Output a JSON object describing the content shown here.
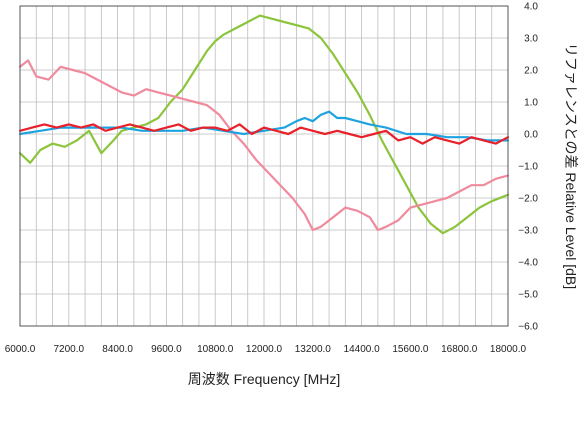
{
  "chart_data": {
    "type": "line",
    "title": "",
    "xlabel": "周波数 Frequency [MHz]",
    "ylabel": "リファレンスとの差 Relative Level [dB]",
    "xlim": [
      6000,
      18000
    ],
    "ylim": [
      -6,
      4
    ],
    "x_ticks": [
      "6000.0",
      "7200.0",
      "8400.0",
      "9600.0",
      "10800.0",
      "12000.0",
      "13200.0",
      "14400.0",
      "15600.0",
      "16800.0",
      "18000.0"
    ],
    "y_ticks": [
      "4.0",
      "3.0",
      "2.0",
      "1.0",
      "0.0",
      "−1.0",
      "−2.0",
      "−3.0",
      "−4.0",
      "−5.0",
      "−6.0"
    ],
    "grid": true,
    "series": [
      {
        "color": "#8cc43c",
        "x": [
          6000,
          6250,
          6500,
          6800,
          7100,
          7400,
          7700,
          8000,
          8300,
          8500,
          8800,
          9100,
          9400,
          9700,
          10000,
          10300,
          10600,
          10800,
          11000,
          11300,
          11600,
          11900,
          12200,
          12500,
          12800,
          13100,
          13400,
          13700,
          14000,
          14300,
          14600,
          14900,
          15200,
          15500,
          15800,
          16100,
          16400,
          16700,
          17000,
          17300,
          17600,
          18000
        ],
        "y": [
          -0.6,
          -0.9,
          -0.5,
          -0.3,
          -0.4,
          -0.2,
          0.1,
          -0.6,
          -0.2,
          0.1,
          0.2,
          0.3,
          0.5,
          1.0,
          1.4,
          2.0,
          2.6,
          2.9,
          3.1,
          3.3,
          3.5,
          3.7,
          3.6,
          3.5,
          3.4,
          3.3,
          3.0,
          2.5,
          1.9,
          1.3,
          0.6,
          -0.2,
          -0.9,
          -1.6,
          -2.3,
          -2.8,
          -3.1,
          -2.9,
          -2.6,
          -2.3,
          -2.1,
          -1.9
        ]
      },
      {
        "color": "#f08a9c",
        "x": [
          6000,
          6200,
          6400,
          6700,
          7000,
          7300,
          7600,
          7900,
          8200,
          8500,
          8800,
          9100,
          9400,
          9700,
          10000,
          10300,
          10600,
          10900,
          11200,
          11500,
          11800,
          12100,
          12400,
          12700,
          13000,
          13200,
          13400,
          13700,
          14000,
          14300,
          14600,
          14800,
          15000,
          15300,
          15600,
          15900,
          16200,
          16500,
          16800,
          17100,
          17400,
          17700,
          18000
        ],
        "y": [
          2.1,
          2.3,
          1.8,
          1.7,
          2.1,
          2.0,
          1.9,
          1.7,
          1.5,
          1.3,
          1.2,
          1.4,
          1.3,
          1.2,
          1.1,
          1.0,
          0.9,
          0.6,
          0.1,
          -0.3,
          -0.8,
          -1.2,
          -1.6,
          -2.0,
          -2.5,
          -3.0,
          -2.9,
          -2.6,
          -2.3,
          -2.4,
          -2.6,
          -3.0,
          -2.9,
          -2.7,
          -2.3,
          -2.2,
          -2.1,
          -2.0,
          -1.8,
          -1.6,
          -1.6,
          -1.4,
          -1.3
        ]
      },
      {
        "color": "#1ea3e0",
        "x": [
          6000,
          6500,
          7000,
          7500,
          8000,
          8500,
          9000,
          9500,
          10000,
          10500,
          11000,
          11500,
          12000,
          12500,
          12800,
          13000,
          13200,
          13400,
          13600,
          13800,
          14000,
          14300,
          14600,
          15000,
          15500,
          16000,
          16500,
          17000,
          17500,
          18000
        ],
        "y": [
          0.0,
          0.1,
          0.2,
          0.2,
          0.2,
          0.2,
          0.1,
          0.1,
          0.1,
          0.2,
          0.1,
          0.0,
          0.1,
          0.2,
          0.4,
          0.5,
          0.4,
          0.6,
          0.7,
          0.5,
          0.5,
          0.4,
          0.3,
          0.2,
          0.0,
          0.0,
          -0.1,
          -0.1,
          -0.2,
          -0.2
        ]
      },
      {
        "color": "#e8202a",
        "x": [
          6000,
          6300,
          6600,
          6900,
          7200,
          7500,
          7800,
          8100,
          8400,
          8700,
          9000,
          9300,
          9600,
          9900,
          10200,
          10500,
          10800,
          11100,
          11400,
          11700,
          12000,
          12300,
          12600,
          12900,
          13200,
          13500,
          13800,
          14100,
          14400,
          14700,
          15000,
          15300,
          15600,
          15900,
          16200,
          16500,
          16800,
          17100,
          17400,
          17700,
          18000
        ],
        "y": [
          0.1,
          0.2,
          0.3,
          0.2,
          0.3,
          0.2,
          0.3,
          0.1,
          0.2,
          0.3,
          0.2,
          0.1,
          0.2,
          0.3,
          0.1,
          0.2,
          0.2,
          0.1,
          0.3,
          0.0,
          0.2,
          0.1,
          0.0,
          0.2,
          0.1,
          0.0,
          0.1,
          0.0,
          -0.1,
          0.0,
          0.1,
          -0.2,
          -0.1,
          -0.3,
          -0.1,
          -0.2,
          -0.3,
          -0.1,
          -0.2,
          -0.3,
          -0.1
        ]
      }
    ]
  }
}
